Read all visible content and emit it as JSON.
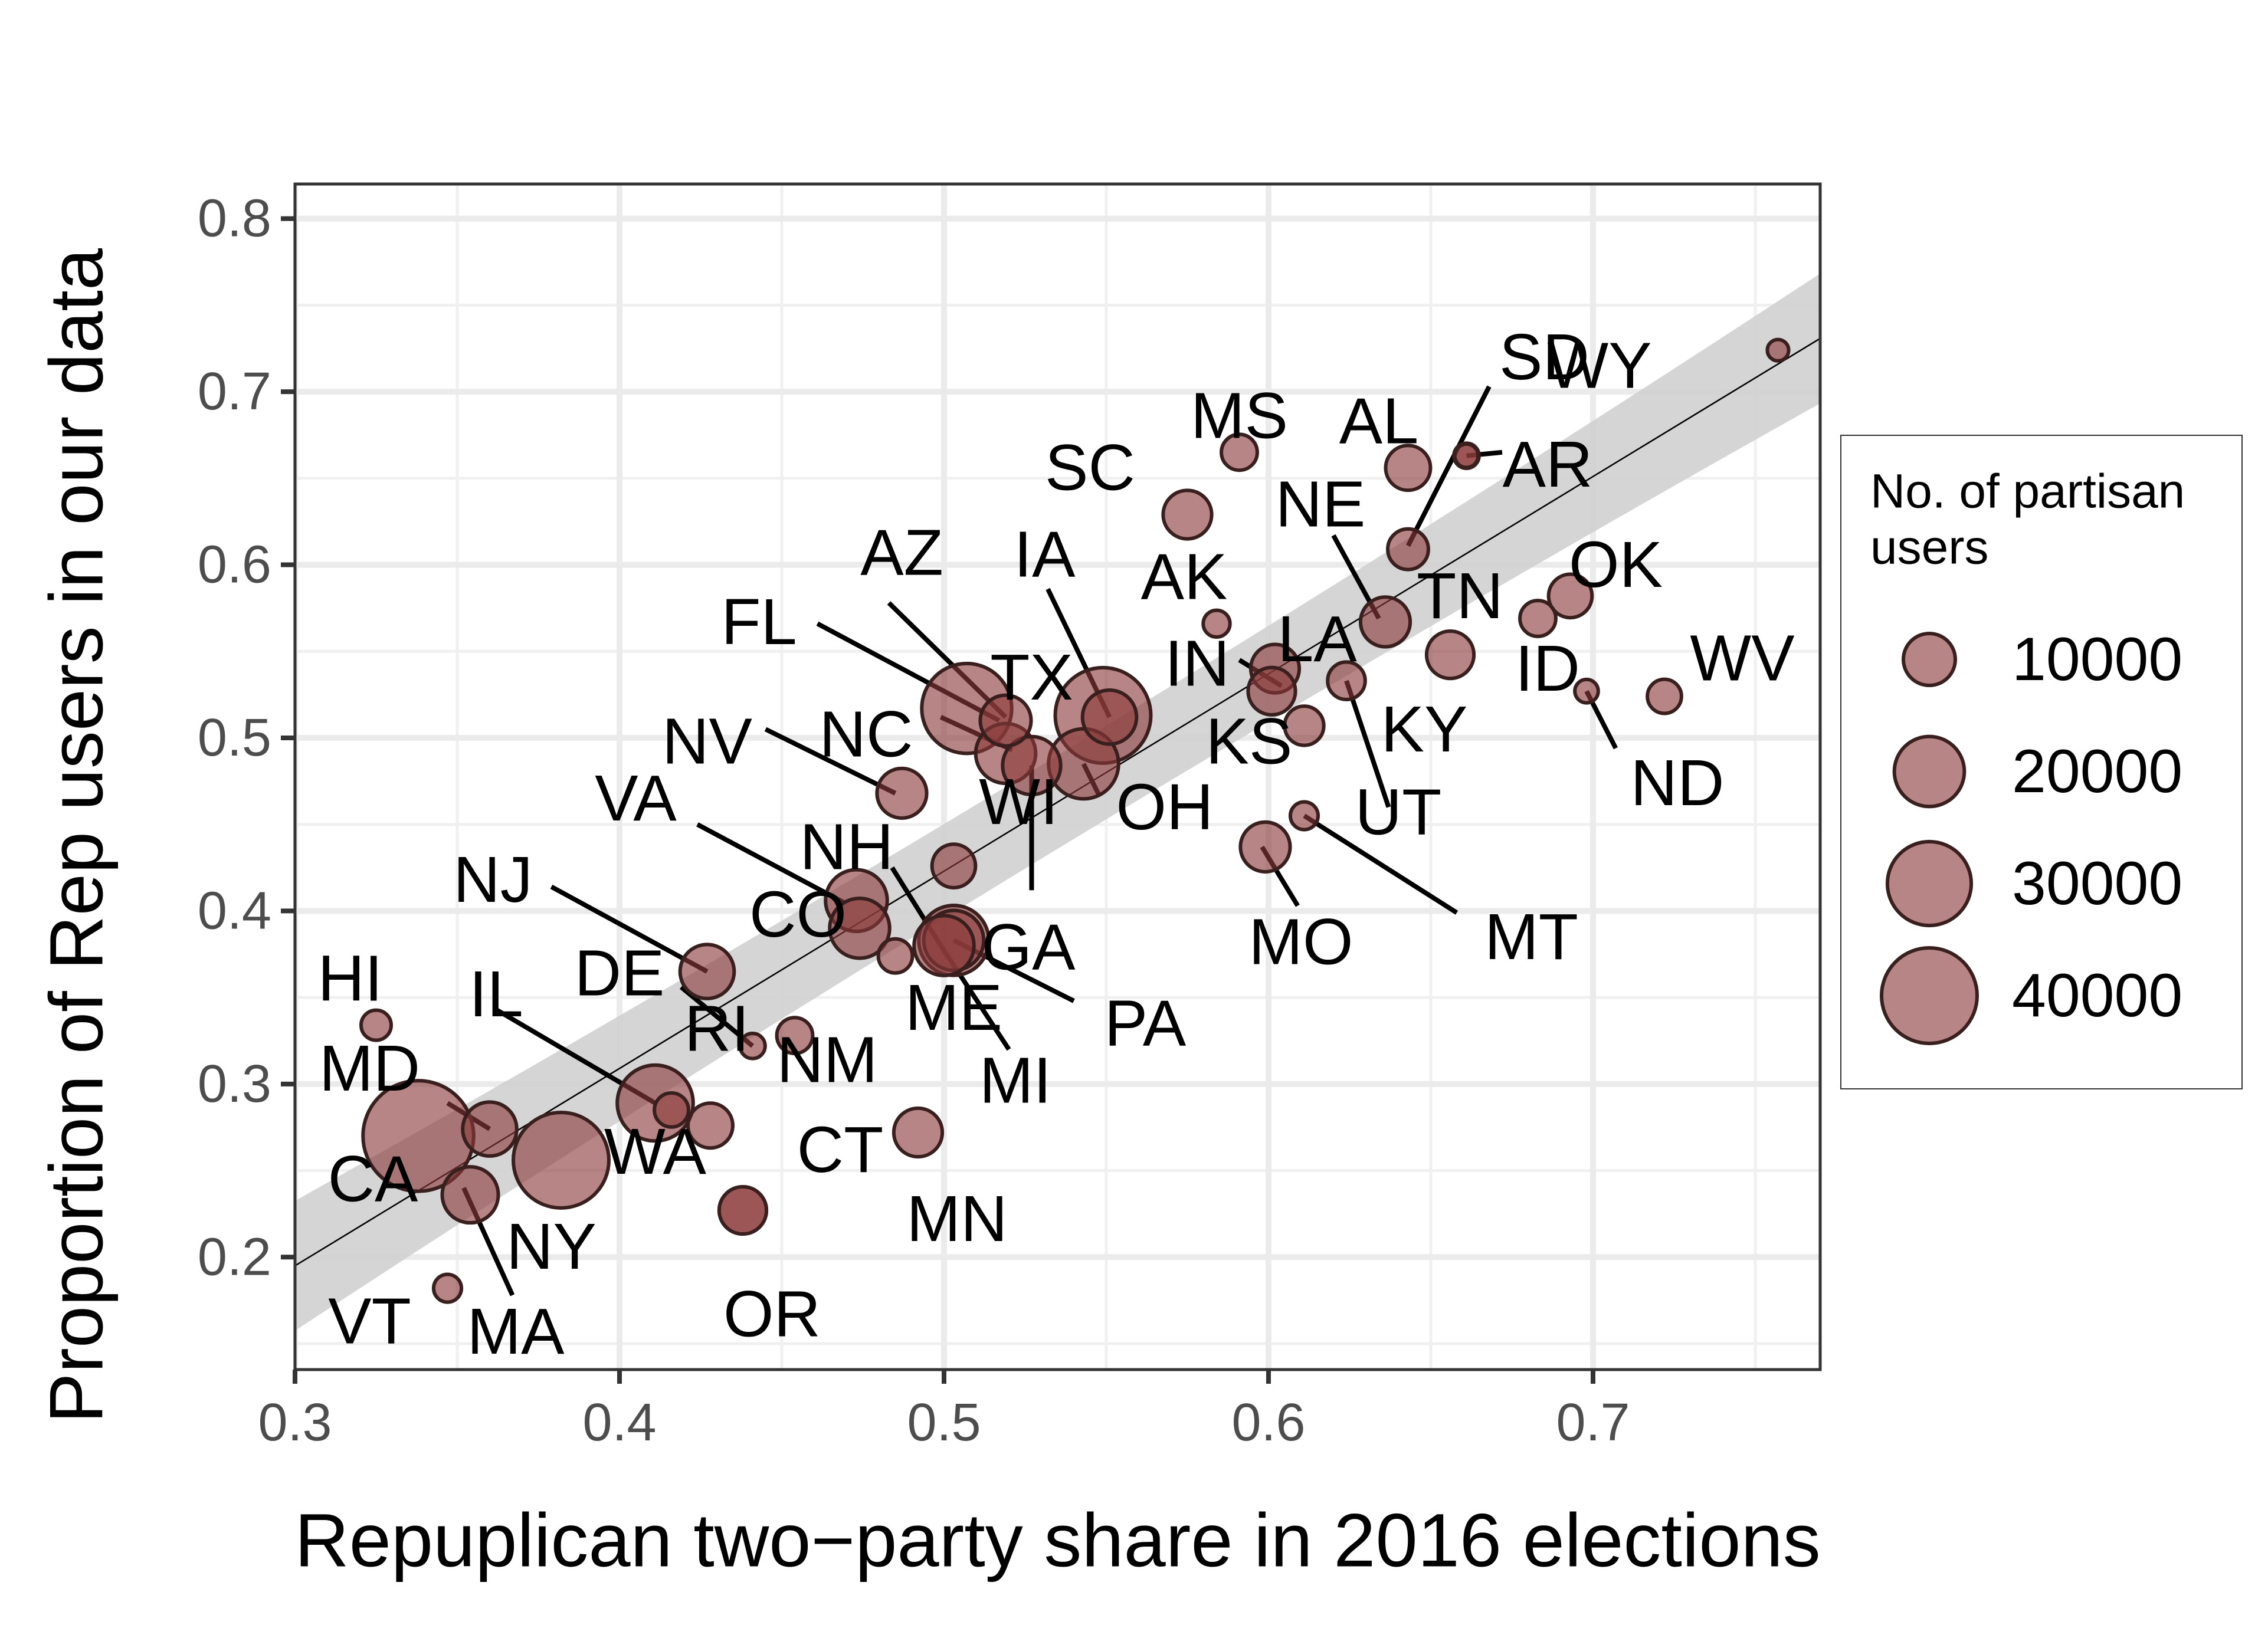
{
  "chart_data": {
    "type": "scatter",
    "xlabel": "Repuplican two−party share in 2016 elections",
    "ylabel": "Proportion of Rep users in our data",
    "xlim": [
      0.3,
      0.77
    ],
    "ylim": [
      0.135,
      0.82
    ],
    "x_ticks": [
      0.3,
      0.4,
      0.5,
      0.6,
      0.7
    ],
    "x_tick_labels": [
      "0.3",
      "0.4",
      "0.5",
      "0.6",
      "0.7"
    ],
    "y_ticks": [
      0.2,
      0.3,
      0.4,
      0.5,
      0.6,
      0.7,
      0.8
    ],
    "y_tick_labels": [
      "0.2",
      "0.3",
      "0.4",
      "0.5",
      "0.6",
      "0.7",
      "0.8"
    ],
    "grid": true,
    "legend_position": "right",
    "point_color": "#8b3a3a",
    "trend": {
      "slope": 1.14,
      "intercept": -0.147,
      "band": 0.03
    },
    "size_legend": {
      "title": [
        "No. of partisan",
        "users"
      ],
      "values": [
        10000,
        20000,
        30000,
        40000
      ],
      "labels": [
        "10000",
        "20000",
        "30000",
        "40000"
      ]
    },
    "points": [
      {
        "state": "WY",
        "x": 0.757,
        "y": 0.724,
        "users": 900
      },
      {
        "state": "SD",
        "x": 0.661,
        "y": 0.663,
        "users": 1200
      },
      {
        "state": "MS",
        "x": 0.591,
        "y": 0.665,
        "users": 4000
      },
      {
        "state": "AL",
        "x": 0.643,
        "y": 0.656,
        "users": 7000
      },
      {
        "state": "AR",
        "x": 0.661,
        "y": 0.663,
        "users": 1500
      },
      {
        "state": "SC",
        "x": 0.575,
        "y": 0.629,
        "users": 8500
      },
      {
        "state": "NE",
        "x": 0.643,
        "y": 0.609,
        "users": 5500
      },
      {
        "state": "OK",
        "x": 0.693,
        "y": 0.582,
        "users": 6500
      },
      {
        "state": "ID",
        "x": 0.683,
        "y": 0.569,
        "users": 4000
      },
      {
        "state": "AK",
        "x": 0.584,
        "y": 0.566,
        "users": 1800
      },
      {
        "state": "LA",
        "x": 0.636,
        "y": 0.567,
        "users": 9000
      },
      {
        "state": "TN",
        "x": 0.656,
        "y": 0.548,
        "users": 8000
      },
      {
        "state": "IN",
        "x": 0.602,
        "y": 0.54,
        "users": 8500
      },
      {
        "state": "KS",
        "x": 0.601,
        "y": 0.527,
        "users": 8000
      },
      {
        "state": "KY",
        "x": 0.624,
        "y": 0.533,
        "users": 4500
      },
      {
        "state": "ND",
        "x": 0.698,
        "y": 0.527,
        "users": 1200
      },
      {
        "state": "WV",
        "x": 0.722,
        "y": 0.524,
        "users": 3500
      },
      {
        "state": "IA",
        "x": 0.551,
        "y": 0.512,
        "users": 11000
      },
      {
        "state": "TX",
        "x": 0.549,
        "y": 0.513,
        "users": 40000
      },
      {
        "state": "AZ",
        "x": 0.519,
        "y": 0.51,
        "users": 9500
      },
      {
        "state": "FL",
        "x": 0.507,
        "y": 0.517,
        "users": 35000
      },
      {
        "state": "NC",
        "x": 0.519,
        "y": 0.491,
        "users": 14000
      },
      {
        "state": "GA",
        "x": 0.527,
        "y": 0.484,
        "users": 13000
      },
      {
        "state": "OH",
        "x": 0.543,
        "y": 0.485,
        "users": 20000
      },
      {
        "state": "UT",
        "x": 0.611,
        "y": 0.507,
        "users": 5000
      },
      {
        "state": "NV",
        "x": 0.487,
        "y": 0.468,
        "users": 9000
      },
      {
        "state": "MT",
        "x": 0.611,
        "y": 0.455,
        "users": 2000
      },
      {
        "state": "MO",
        "x": 0.599,
        "y": 0.437,
        "users": 9000
      },
      {
        "state": "NH",
        "x": 0.503,
        "y": 0.426,
        "users": 6500
      },
      {
        "state": "WI",
        "x": 0.503,
        "y": 0.383,
        "users": 14000
      },
      {
        "state": "VA",
        "x": 0.473,
        "y": 0.406,
        "users": 15000
      },
      {
        "state": "CO",
        "x": 0.474,
        "y": 0.39,
        "users": 14000
      },
      {
        "state": "ME",
        "x": 0.485,
        "y": 0.374,
        "users": 3500
      },
      {
        "state": "PA",
        "x": 0.503,
        "y": 0.383,
        "users": 20000
      },
      {
        "state": "MI",
        "x": 0.5,
        "y": 0.38,
        "users": 14000
      },
      {
        "state": "NJ",
        "x": 0.427,
        "y": 0.365,
        "users": 11000
      },
      {
        "state": "HI",
        "x": 0.325,
        "y": 0.334,
        "users": 2500
      },
      {
        "state": "NM",
        "x": 0.454,
        "y": 0.328,
        "users": 4000
      },
      {
        "state": "DE",
        "x": 0.441,
        "y": 0.322,
        "users": 1500
      },
      {
        "state": "IL",
        "x": 0.411,
        "y": 0.289,
        "users": 24000
      },
      {
        "state": "RI",
        "x": 0.416,
        "y": 0.285,
        "users": 3500
      },
      {
        "state": "MD",
        "x": 0.36,
        "y": 0.274,
        "users": 11000
      },
      {
        "state": "WA",
        "x": 0.428,
        "y": 0.276,
        "users": 7000
      },
      {
        "state": "MN",
        "x": 0.492,
        "y": 0.272,
        "users": 8500
      },
      {
        "state": "CA",
        "x": 0.338,
        "y": 0.27,
        "users": 55000
      },
      {
        "state": "NY",
        "x": 0.382,
        "y": 0.256,
        "users": 40000
      },
      {
        "state": "MA",
        "x": 0.354,
        "y": 0.236,
        "users": 12000
      },
      {
        "state": "CT",
        "x": 0.438,
        "y": 0.227,
        "users": 8000
      },
      {
        "state": "OR",
        "x": 0.438,
        "y": 0.227,
        "users": 8000
      },
      {
        "state": "VT",
        "x": 0.347,
        "y": 0.182,
        "users": 2000
      }
    ],
    "annotations": [
      {
        "text": "WY",
        "lx": 0.702,
        "ly": 0.715
      },
      {
        "text": "SD",
        "lx": 0.685,
        "ly": 0.72,
        "seg": [
          0.668,
          0.703,
          0.643,
          0.611
        ]
      },
      {
        "text": "MS",
        "lx": 0.591,
        "ly": 0.686
      },
      {
        "text": "AL",
        "lx": 0.634,
        "ly": 0.683
      },
      {
        "text": "AR",
        "lx": 0.686,
        "ly": 0.658,
        "seg": [
          0.672,
          0.665,
          0.661,
          0.663
        ]
      },
      {
        "text": "SC",
        "lx": 0.545,
        "ly": 0.656
      },
      {
        "text": "NE",
        "lx": 0.616,
        "ly": 0.635,
        "seg": [
          0.62,
          0.617,
          0.634,
          0.569
        ]
      },
      {
        "text": "OK",
        "lx": 0.707,
        "ly": 0.6
      },
      {
        "text": "ID",
        "lx": 0.686,
        "ly": 0.54
      },
      {
        "text": "AK",
        "lx": 0.574,
        "ly": 0.593
      },
      {
        "text": "LA",
        "lx": 0.615,
        "ly": 0.557
      },
      {
        "text": "TN",
        "lx": 0.659,
        "ly": 0.582
      },
      {
        "text": "IN",
        "lx": 0.578,
        "ly": 0.543,
        "seg": [
          0.591,
          0.545,
          0.604,
          0.53
        ]
      },
      {
        "text": "KS",
        "lx": 0.594,
        "ly": 0.498
      },
      {
        "text": "KY",
        "lx": 0.648,
        "ly": 0.505
      },
      {
        "text": "ND",
        "lx": 0.726,
        "ly": 0.474,
        "seg": [
          0.707,
          0.494,
          0.698,
          0.527
        ]
      },
      {
        "text": "WV",
        "lx": 0.746,
        "ly": 0.546
      },
      {
        "text": "IA",
        "lx": 0.531,
        "ly": 0.606,
        "seg": [
          0.532,
          0.586,
          0.551,
          0.512
        ]
      },
      {
        "text": "TX",
        "lx": 0.527,
        "ly": 0.535
      },
      {
        "text": "AZ",
        "lx": 0.487,
        "ly": 0.607,
        "seg": [
          0.483,
          0.578,
          0.519,
          0.512
        ]
      },
      {
        "text": "FL",
        "lx": 0.443,
        "ly": 0.567,
        "seg": [
          0.461,
          0.566,
          0.517,
          0.51
        ]
      },
      {
        "text": "NC",
        "lx": 0.476,
        "ly": 0.502,
        "seg": [
          0.499,
          0.512,
          0.521,
          0.493
        ]
      },
      {
        "text": "GA",
        "lx": 0.526,
        "ly": 0.379,
        "seg": [
          0.527,
          0.412,
          0.527,
          0.484
        ]
      },
      {
        "text": "OH",
        "lx": 0.568,
        "ly": 0.46,
        "seg": [
          0.548,
          0.466,
          0.543,
          0.485
        ]
      },
      {
        "text": "UT",
        "lx": 0.64,
        "ly": 0.457,
        "seg": [
          0.637,
          0.46,
          0.624,
          0.533
        ]
      },
      {
        "text": "NV",
        "lx": 0.427,
        "ly": 0.498,
        "seg": [
          0.445,
          0.505,
          0.485,
          0.468
        ]
      },
      {
        "text": "MT",
        "lx": 0.681,
        "ly": 0.385,
        "seg": [
          0.658,
          0.399,
          0.611,
          0.455
        ]
      },
      {
        "text": "MO",
        "lx": 0.61,
        "ly": 0.382,
        "seg": [
          0.609,
          0.403,
          0.598,
          0.437
        ]
      },
      {
        "text": "NH",
        "lx": 0.47,
        "ly": 0.437
      },
      {
        "text": "WI",
        "lx": 0.523,
        "ly": 0.463
      },
      {
        "text": "VA",
        "lx": 0.405,
        "ly": 0.465,
        "seg": [
          0.424,
          0.45,
          0.469,
          0.405
        ]
      },
      {
        "text": "CO",
        "lx": 0.455,
        "ly": 0.398
      },
      {
        "text": "ME",
        "lx": 0.503,
        "ly": 0.344
      },
      {
        "text": "PA",
        "lx": 0.562,
        "ly": 0.335,
        "seg": [
          0.54,
          0.348,
          0.503,
          0.383
        ]
      },
      {
        "text": "MI",
        "lx": 0.522,
        "ly": 0.302,
        "seg": [
          0.52,
          0.32,
          0.499,
          0.38
        ],
        "seg2": [
          0.484,
          0.425,
          0.499,
          0.38
        ]
      },
      {
        "text": "NJ",
        "lx": 0.361,
        "ly": 0.418,
        "seg": [
          0.379,
          0.414,
          0.427,
          0.365
        ]
      },
      {
        "text": "HI",
        "lx": 0.317,
        "ly": 0.361
      },
      {
        "text": "NM",
        "lx": 0.464,
        "ly": 0.314
      },
      {
        "text": "DE",
        "lx": 0.4,
        "ly": 0.364,
        "seg": [
          0.419,
          0.356,
          0.441,
          0.322
        ]
      },
      {
        "text": "IL",
        "lx": 0.362,
        "ly": 0.352,
        "seg": [
          0.362,
          0.343,
          0.411,
          0.289
        ]
      },
      {
        "text": "RI",
        "lx": 0.43,
        "ly": 0.332
      },
      {
        "text": "MD",
        "lx": 0.323,
        "ly": 0.309,
        "seg": [
          0.347,
          0.289,
          0.36,
          0.274
        ]
      },
      {
        "text": "WA",
        "lx": 0.411,
        "ly": 0.261
      },
      {
        "text": "MN",
        "lx": 0.504,
        "ly": 0.222
      },
      {
        "text": "CA",
        "lx": 0.324,
        "ly": 0.245
      },
      {
        "text": "NY",
        "lx": 0.379,
        "ly": 0.206
      },
      {
        "text": "MA",
        "lx": 0.368,
        "ly": 0.157,
        "seg": [
          0.367,
          0.178,
          0.352,
          0.24
        ]
      },
      {
        "text": "CT",
        "lx": 0.468,
        "ly": 0.262
      },
      {
        "text": "OR",
        "lx": 0.447,
        "ly": 0.167
      },
      {
        "text": "VT",
        "lx": 0.323,
        "ly": 0.163
      }
    ]
  }
}
